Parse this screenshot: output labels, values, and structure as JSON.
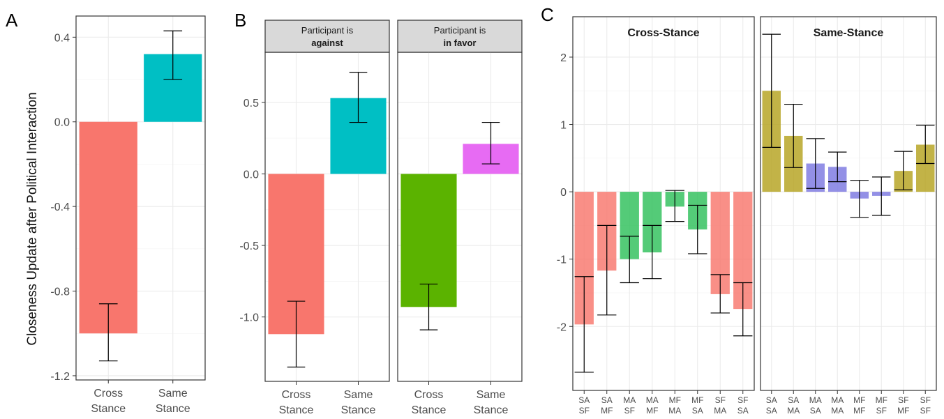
{
  "figure": {
    "panels": [
      "A",
      "B",
      "C"
    ],
    "y_axis_title": "Closeness Update after Political Interaction"
  },
  "chart_data": [
    {
      "id": "A",
      "type": "bar",
      "categories": [
        [
          "Cross",
          "Stance"
        ],
        [
          "Same",
          "Stance"
        ]
      ],
      "values": [
        -1.0,
        0.32
      ],
      "error_low": [
        -1.13,
        0.2
      ],
      "error_high": [
        -0.86,
        0.43
      ],
      "colors": [
        "#F8766D",
        "#00BFC4"
      ],
      "ylim": [
        -1.22,
        0.5
      ],
      "yticks": [
        0.4,
        0.0,
        -0.4,
        -0.8,
        -1.2
      ],
      "ytick_labels": [
        "0.4",
        "0.0",
        "-0.4",
        "-0.8",
        "-1.2"
      ],
      "ylabel": "Closeness Update after Political Interaction",
      "grid": true
    },
    {
      "id": "B",
      "type": "bar",
      "ylim": [
        -1.45,
        0.85
      ],
      "yticks": [
        0.5,
        0.0,
        -0.5,
        -1.0
      ],
      "ytick_labels": [
        "0.5",
        "0.0",
        "-0.5",
        "-1.0"
      ],
      "grid": true,
      "facets": [
        {
          "strip": [
            "Participant is",
            "against"
          ],
          "categories": [
            [
              "Cross",
              "Stance"
            ],
            [
              "Same",
              "Stance"
            ]
          ],
          "values": [
            -1.12,
            0.53
          ],
          "error_low": [
            -1.35,
            0.36
          ],
          "error_high": [
            -0.89,
            0.71
          ],
          "colors": [
            "#F8766D",
            "#00BFC4"
          ]
        },
        {
          "strip": [
            "Participant is",
            "in favor"
          ],
          "categories": [
            [
              "Cross",
              "Stance"
            ],
            [
              "Same",
              "Stance"
            ]
          ],
          "values": [
            -0.93,
            0.21
          ],
          "error_low": [
            -1.09,
            0.07
          ],
          "error_high": [
            -0.77,
            0.36
          ],
          "colors": [
            "#5BB300",
            "#E76BF3"
          ]
        }
      ]
    },
    {
      "id": "C",
      "type": "bar",
      "ylim": [
        -2.95,
        2.6
      ],
      "yticks": [
        2,
        1,
        0,
        -1,
        -2
      ],
      "ytick_labels": [
        "2",
        "1",
        "0",
        "-1",
        "-2"
      ],
      "grid": true,
      "facets": [
        {
          "title": "Cross-Stance",
          "categories": [
            [
              "SA",
              "SF"
            ],
            [
              "SA",
              "MF"
            ],
            [
              "MA",
              "SF"
            ],
            [
              "MA",
              "MF"
            ],
            [
              "MF",
              "MA"
            ],
            [
              "MF",
              "SA"
            ],
            [
              "SF",
              "MA"
            ],
            [
              "SF",
              "SA"
            ]
          ],
          "values": [
            -1.97,
            -1.17,
            -1.0,
            -0.9,
            -0.22,
            -0.56,
            -1.52,
            -1.74
          ],
          "error_low": [
            -2.68,
            -1.83,
            -1.35,
            -1.29,
            -0.44,
            -0.92,
            -1.8,
            -2.14
          ],
          "error_high": [
            -1.26,
            -0.5,
            -0.66,
            -0.5,
            0.02,
            -0.2,
            -1.23,
            -1.35
          ],
          "colors": [
            "#F8766D",
            "#F8766D",
            "#2EC05A",
            "#2EC05A",
            "#2EC05A",
            "#2EC05A",
            "#F8766D",
            "#F8766D"
          ]
        },
        {
          "title": "Same-Stance",
          "categories": [
            [
              "SA",
              "SA"
            ],
            [
              "SA",
              "MA"
            ],
            [
              "MA",
              "SA"
            ],
            [
              "MA",
              "MA"
            ],
            [
              "MF",
              "MF"
            ],
            [
              "MF",
              "SF"
            ],
            [
              "SF",
              "MF"
            ],
            [
              "SF",
              "SF"
            ]
          ],
          "values": [
            1.5,
            0.83,
            0.42,
            0.37,
            -0.1,
            -0.06,
            0.31,
            0.7
          ],
          "error_low": [
            0.66,
            0.36,
            0.05,
            0.15,
            -0.38,
            -0.35,
            0.03,
            0.42
          ],
          "error_high": [
            2.34,
            1.3,
            0.79,
            0.59,
            0.17,
            0.22,
            0.6,
            0.99
          ],
          "colors": [
            "#B5A21F",
            "#B5A21F",
            "#7B78E0",
            "#7B78E0",
            "#7B78E0",
            "#7B78E0",
            "#B5A21F",
            "#B5A21F"
          ]
        }
      ]
    }
  ]
}
